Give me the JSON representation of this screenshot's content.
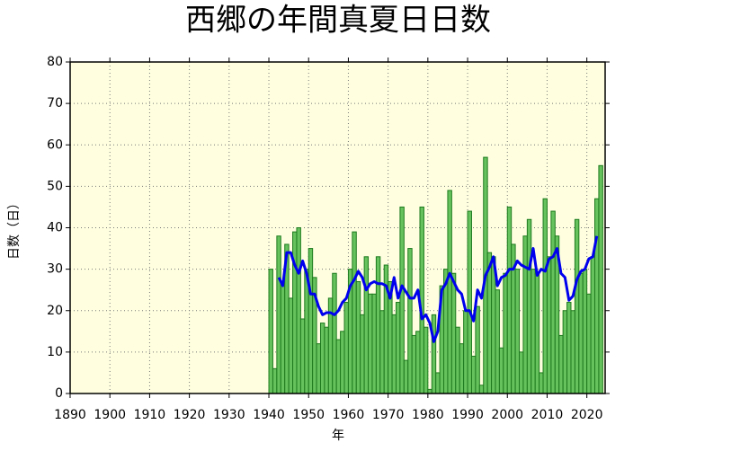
{
  "chart_data": {
    "type": "bar",
    "title": "西郷の年間真夏日日数",
    "xlabel": "年",
    "ylabel": "日数（日）",
    "x": [
      1940,
      1941,
      1942,
      1943,
      1944,
      1945,
      1946,
      1947,
      1948,
      1949,
      1950,
      1951,
      1952,
      1953,
      1954,
      1955,
      1956,
      1957,
      1958,
      1959,
      1960,
      1961,
      1962,
      1963,
      1964,
      1965,
      1966,
      1967,
      1968,
      1969,
      1970,
      1971,
      1972,
      1973,
      1974,
      1975,
      1976,
      1977,
      1978,
      1979,
      1980,
      1981,
      1982,
      1983,
      1984,
      1985,
      1986,
      1987,
      1988,
      1989,
      1990,
      1991,
      1992,
      1993,
      1994,
      1995,
      1996,
      1997,
      1998,
      1999,
      2000,
      2001,
      2002,
      2003,
      2004,
      2005,
      2006,
      2007,
      2008,
      2009,
      2010,
      2011,
      2012,
      2013,
      2014,
      2015,
      2016,
      2017,
      2018,
      2019,
      2020,
      2021,
      2022,
      2023
    ],
    "values": [
      30,
      6,
      38,
      27,
      36,
      23,
      39,
      40,
      18,
      30,
      35,
      28,
      12,
      17,
      16,
      23,
      29,
      13,
      15,
      22,
      30,
      39,
      27,
      19,
      33,
      24,
      24,
      33,
      20,
      31,
      27,
      19,
      22,
      45,
      8,
      35,
      14,
      15,
      45,
      16,
      1,
      19,
      5,
      26,
      30,
      49,
      29,
      16,
      12,
      20,
      44,
      9,
      21,
      2,
      57,
      34,
      33,
      25,
      11,
      29,
      45,
      36,
      30,
      10,
      38,
      42,
      30,
      29,
      5,
      47,
      33,
      44,
      38,
      14,
      20,
      22,
      20,
      42,
      29,
      30,
      24,
      33,
      47,
      55
    ],
    "color": "#66c25c",
    "line": {
      "color": "#0000ee",
      "x": [
        1942,
        1943,
        1944,
        1945,
        1946,
        1947,
        1948,
        1949,
        1950,
        1951,
        1952,
        1953,
        1954,
        1955,
        1956,
        1957,
        1958,
        1959,
        1960,
        1961,
        1962,
        1963,
        1964,
        1965,
        1966,
        1967,
        1968,
        1969,
        1970,
        1971,
        1972,
        1973,
        1974,
        1975,
        1976,
        1977,
        1978,
        1979,
        1980,
        1981,
        1982,
        1983,
        1984,
        1985,
        1986,
        1987,
        1988,
        1989,
        1990,
        1991,
        1992,
        1993,
        1994,
        1995,
        1996,
        1997,
        1998,
        1999,
        2000,
        2001,
        2002,
        2003,
        2004,
        2005,
        2006,
        2007,
        2008,
        2009,
        2010,
        2011,
        2012,
        2013,
        2014,
        2015,
        2016,
        2017,
        2018,
        2019,
        2020,
        2021,
        2022
      ],
      "values": [
        28,
        26,
        34,
        34,
        31,
        29,
        32,
        29,
        24,
        24,
        21,
        19,
        19.5,
        19.5,
        19,
        20,
        22,
        23,
        26,
        27.5,
        29.5,
        28,
        25,
        26.5,
        27,
        26.5,
        26.5,
        26,
        23,
        28,
        23,
        26,
        24.5,
        23,
        23,
        25,
        18,
        19,
        17,
        12.5,
        15,
        25,
        26.5,
        29,
        27,
        25,
        24,
        20,
        20,
        17.5,
        25,
        23,
        28.5,
        30.5,
        33,
        26,
        28,
        28.5,
        30,
        30,
        32,
        31,
        30.5,
        30,
        35,
        28.5,
        30,
        29.5,
        32.5,
        33,
        35,
        29,
        28,
        22.5,
        23.5,
        27.5,
        29.5,
        30,
        32.5,
        33,
        38
      ]
    },
    "xlim": [
      1890,
      2024.6
    ],
    "xticks": [
      1890,
      1900,
      1910,
      1920,
      1930,
      1940,
      1950,
      1960,
      1970,
      1980,
      1990,
      2000,
      2010,
      2020
    ],
    "ylim": [
      0,
      80
    ],
    "yticks": [
      0,
      10,
      20,
      30,
      40,
      50,
      60,
      70,
      80
    ],
    "grid": true
  }
}
